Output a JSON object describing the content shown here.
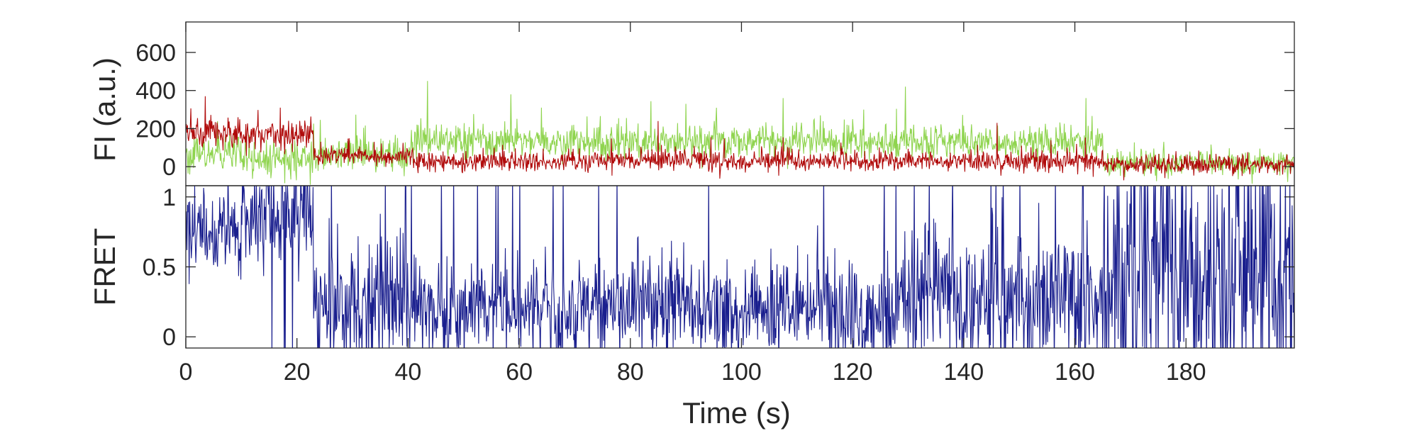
{
  "chart_data": [
    {
      "type": "line",
      "panel": "intensity",
      "ylabel": "FI (a.u.)",
      "xlim": [
        0,
        199.5
      ],
      "ylim": [
        -100,
        760
      ],
      "yticks": [
        0,
        200,
        400,
        600
      ],
      "yticklabels": [
        "0",
        "200",
        "400",
        "600"
      ],
      "box": true,
      "grid": false,
      "legend": "none",
      "sample_interval_s": 0.1,
      "series": [
        {
          "color": "#8fd44f",
          "segments": [
            {
              "x": [
                0,
                10
              ],
              "mean": 60,
              "noise": 60
            },
            {
              "x": [
                10,
                23
              ],
              "mean": 30,
              "noise": 65
            },
            {
              "x": [
                23,
                41
              ],
              "mean": 70,
              "noise": 60
            },
            {
              "x": [
                41,
                165
              ],
              "mean": 130,
              "noise": 60
            },
            {
              "x": [
                165,
                199.5
              ],
              "mean": 20,
              "noise": 45
            }
          ],
          "peaks": [
            {
              "x": 43.5,
              "y": 450
            },
            {
              "x": 58.5,
              "y": 380
            },
            {
              "x": 64,
              "y": 310
            },
            {
              "x": 90,
              "y": 330
            },
            {
              "x": 107.5,
              "y": 360
            },
            {
              "x": 122,
              "y": 300
            },
            {
              "x": 129.5,
              "y": 420
            },
            {
              "x": 162,
              "y": 360
            }
          ]
        },
        {
          "color": "#b00a0a",
          "segments": [
            {
              "x": [
                0,
                10
              ],
              "mean": 180,
              "noise": 50
            },
            {
              "x": [
                10,
                23
              ],
              "mean": 170,
              "noise": 55
            },
            {
              "x": [
                23,
                41
              ],
              "mean": 60,
              "noise": 35
            },
            {
              "x": [
                41,
                165
              ],
              "mean": 30,
              "noise": 35
            },
            {
              "x": [
                165,
                199.5
              ],
              "mean": 10,
              "noise": 35
            }
          ],
          "peaks": [
            {
              "x": 3.5,
              "y": 370
            },
            {
              "x": 17,
              "y": 310
            },
            {
              "x": 85,
              "y": 240
            },
            {
              "x": 146,
              "y": 230
            }
          ]
        }
      ]
    },
    {
      "type": "line",
      "panel": "fret",
      "ylabel": "FRET",
      "xlabel": "Time (s)",
      "xlim": [
        0,
        199.5
      ],
      "ylim": [
        -0.08,
        1.08
      ],
      "xticks": [
        0,
        20,
        40,
        60,
        80,
        100,
        120,
        140,
        160,
        180
      ],
      "xticklabels": [
        "0",
        "20",
        "40",
        "60",
        "80",
        "100",
        "120",
        "140",
        "160",
        "180"
      ],
      "yticks": [
        0,
        0.5,
        1
      ],
      "yticklabels": [
        "0",
        "0.5",
        "1"
      ],
      "box": true,
      "grid": false,
      "legend": "none",
      "series": [
        {
          "color": "#1a1f8e",
          "sample_interval_s": 0.1,
          "segments": [
            {
              "x": [
                0,
                10
              ],
              "mean": 0.75,
              "noise": 0.16,
              "clip_prob": 0.02
            },
            {
              "x": [
                10,
                23
              ],
              "mean": 0.85,
              "noise": 0.2,
              "clip_prob": 0.08
            },
            {
              "x": [
                23,
                40
              ],
              "mean": 0.25,
              "noise": 0.25,
              "clip_prob": 0.05
            },
            {
              "x": [
                40,
                60
              ],
              "mean": 0.2,
              "noise": 0.16,
              "clip_prob": 0.04
            },
            {
              "x": [
                60,
                130
              ],
              "mean": 0.22,
              "noise": 0.18,
              "clip_prob": 0.03
            },
            {
              "x": [
                130,
                165
              ],
              "mean": 0.3,
              "noise": 0.25,
              "clip_prob": 0.06
            },
            {
              "x": [
                165,
                199.5
              ],
              "mean": 0.45,
              "noise": 0.38,
              "clip_prob": 0.2
            }
          ]
        }
      ]
    }
  ]
}
